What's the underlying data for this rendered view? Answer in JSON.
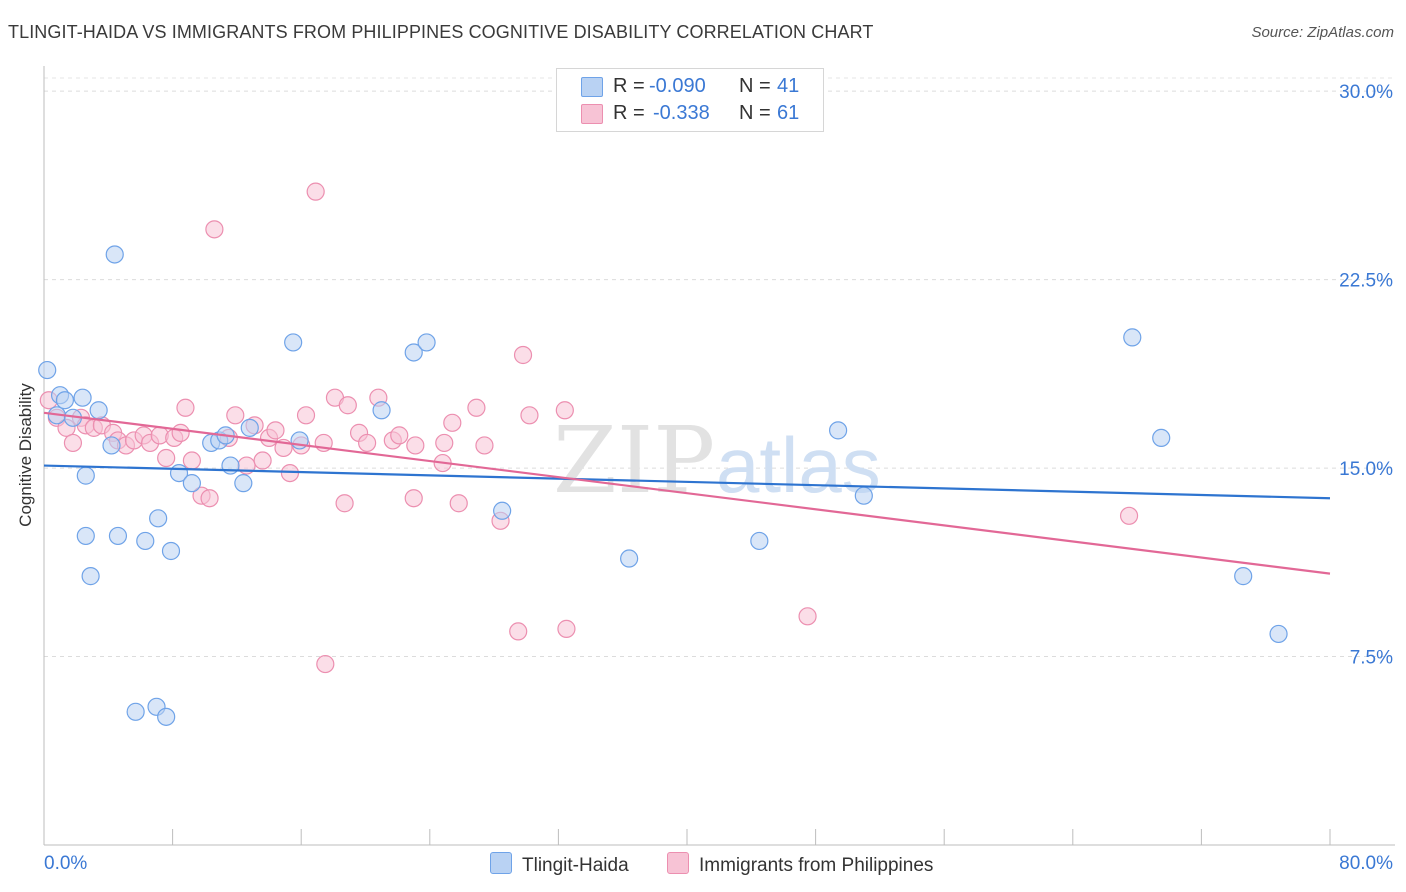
{
  "title": "TLINGIT-HAIDA VS IMMIGRANTS FROM PHILIPPINES COGNITIVE DISABILITY CORRELATION CHART",
  "source": "Source: ZipAtlas.com",
  "watermark": {
    "zip": "ZIP",
    "atlas": "atlas"
  },
  "legend": {
    "rows": [
      {
        "r_label": "R = ",
        "r_value": "-0.090",
        "n_label": "N = ",
        "n_value": "41"
      },
      {
        "r_label": "R = ",
        "r_value": "-0.338",
        "n_label": "N = ",
        "n_value": "61"
      }
    ]
  },
  "chart_data": {
    "type": "scatter",
    "title": "TLINGIT-HAIDA VS IMMIGRANTS FROM PHILIPPINES COGNITIVE DISABILITY CORRELATION CHART",
    "xlabel": "",
    "ylabel": "Cognitive Disability",
    "xlim": [
      0,
      80
    ],
    "ylim": [
      0,
      31
    ],
    "x_tick_labels": [
      "0.0%",
      "80.0%"
    ],
    "y_ticks": [
      7.5,
      15.0,
      22.5,
      30.0
    ],
    "y_tick_labels": [
      "7.5%",
      "15.0%",
      "22.5%",
      "30.0%"
    ],
    "grid": "horizontal dashed",
    "legend_position": "top-center and bottom",
    "colors": {
      "blue": "#6fa3e8",
      "blue_fill": "#b9d2f3",
      "blue_line": "#2e74d0",
      "pink": "#ec8fb0",
      "pink_fill": "#f7c3d5",
      "pink_line": "#e26896",
      "tick_text": "#3a78d4"
    },
    "series": [
      {
        "name": "Tlingit-Haida",
        "color": "blue",
        "trend": {
          "x": [
            0,
            80
          ],
          "y": [
            15.1,
            13.8
          ]
        },
        "points": [
          [
            0.2,
            18.9
          ],
          [
            0.8,
            17.1
          ],
          [
            1.0,
            17.9
          ],
          [
            1.3,
            17.7
          ],
          [
            1.8,
            17.0
          ],
          [
            2.4,
            17.8
          ],
          [
            3.4,
            17.3
          ],
          [
            4.2,
            15.9
          ],
          [
            2.6,
            14.7
          ],
          [
            4.4,
            23.5
          ],
          [
            2.6,
            12.3
          ],
          [
            4.6,
            12.3
          ],
          [
            6.3,
            12.1
          ],
          [
            7.1,
            13.0
          ],
          [
            7.9,
            11.7
          ],
          [
            2.9,
            10.7
          ],
          [
            8.4,
            14.8
          ],
          [
            9.2,
            14.4
          ],
          [
            10.4,
            16.0
          ],
          [
            10.9,
            16.1
          ],
          [
            11.3,
            16.3
          ],
          [
            11.6,
            15.1
          ],
          [
            12.4,
            14.4
          ],
          [
            12.8,
            16.6
          ],
          [
            15.5,
            20.0
          ],
          [
            15.9,
            16.1
          ],
          [
            23.0,
            19.6
          ],
          [
            23.8,
            20.0
          ],
          [
            21.0,
            17.3
          ],
          [
            28.5,
            13.3
          ],
          [
            36.4,
            11.4
          ],
          [
            44.5,
            12.1
          ],
          [
            49.4,
            16.5
          ],
          [
            51.0,
            13.9
          ],
          [
            67.7,
            20.2
          ],
          [
            69.5,
            16.2
          ],
          [
            74.6,
            10.7
          ],
          [
            76.8,
            8.4
          ],
          [
            5.7,
            5.3
          ],
          [
            7.0,
            5.5
          ],
          [
            7.6,
            5.1
          ]
        ]
      },
      {
        "name": "Immigrants from Philippines",
        "color": "pink",
        "trend": {
          "x": [
            0,
            80
          ],
          "y": [
            17.2,
            10.8
          ]
        },
        "points": [
          [
            0.3,
            17.7
          ],
          [
            0.8,
            17.0
          ],
          [
            1.4,
            16.6
          ],
          [
            1.8,
            16.0
          ],
          [
            2.3,
            17.0
          ],
          [
            2.6,
            16.7
          ],
          [
            3.1,
            16.6
          ],
          [
            3.6,
            16.7
          ],
          [
            4.3,
            16.4
          ],
          [
            4.6,
            16.1
          ],
          [
            5.1,
            15.9
          ],
          [
            5.6,
            16.1
          ],
          [
            6.2,
            16.3
          ],
          [
            6.6,
            16.0
          ],
          [
            7.2,
            16.3
          ],
          [
            7.6,
            15.4
          ],
          [
            8.1,
            16.2
          ],
          [
            8.5,
            16.4
          ],
          [
            8.8,
            17.4
          ],
          [
            9.2,
            15.3
          ],
          [
            9.8,
            13.9
          ],
          [
            10.3,
            13.8
          ],
          [
            10.6,
            24.5
          ],
          [
            11.5,
            16.2
          ],
          [
            11.9,
            17.1
          ],
          [
            12.6,
            15.1
          ],
          [
            13.1,
            16.7
          ],
          [
            13.6,
            15.3
          ],
          [
            14.0,
            16.2
          ],
          [
            14.4,
            16.5
          ],
          [
            14.9,
            15.8
          ],
          [
            15.3,
            14.8
          ],
          [
            16.0,
            15.9
          ],
          [
            16.3,
            17.1
          ],
          [
            16.9,
            26.0
          ],
          [
            17.4,
            16.0
          ],
          [
            18.1,
            17.8
          ],
          [
            18.9,
            17.5
          ],
          [
            19.6,
            16.4
          ],
          [
            20.1,
            16.0
          ],
          [
            20.8,
            17.8
          ],
          [
            21.7,
            16.1
          ],
          [
            22.1,
            16.3
          ],
          [
            23.1,
            15.9
          ],
          [
            24.8,
            15.2
          ],
          [
            24.9,
            16.0
          ],
          [
            25.4,
            16.8
          ],
          [
            26.9,
            17.4
          ],
          [
            27.4,
            15.9
          ],
          [
            29.8,
            19.5
          ],
          [
            30.2,
            17.1
          ],
          [
            32.4,
            17.3
          ],
          [
            17.5,
            7.2
          ],
          [
            28.4,
            12.9
          ],
          [
            29.5,
            8.5
          ],
          [
            32.5,
            8.6
          ],
          [
            47.5,
            9.1
          ],
          [
            67.5,
            13.1
          ],
          [
            18.7,
            13.6
          ],
          [
            23.0,
            13.8
          ],
          [
            25.8,
            13.6
          ]
        ]
      }
    ]
  },
  "bottom_legend": {
    "items": [
      {
        "label": "Tlingit-Haida"
      },
      {
        "label": "Immigrants from Philippines"
      }
    ]
  }
}
